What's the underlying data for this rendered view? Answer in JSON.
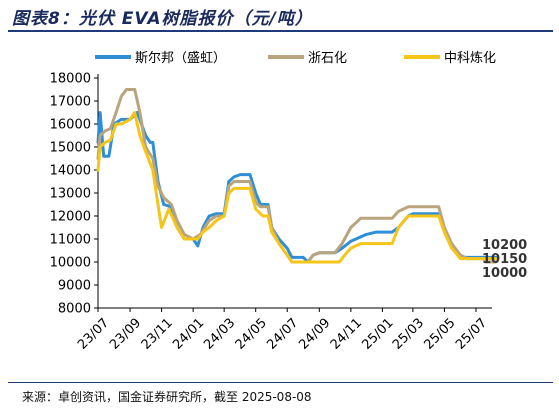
{
  "title": "图表8：光伏 EVA树脂报价（元/吨）",
  "source": "来源：卓创资讯，国金证券研究所，截至 2025-08-08",
  "chart_data": {
    "type": "line",
    "title": "图表8：光伏 EVA树脂报价（元/吨）",
    "ylabel": "",
    "xlabel": "",
    "ylim": [
      8000,
      18000
    ],
    "yticks": [
      8000,
      9000,
      10000,
      11000,
      12000,
      13000,
      14000,
      15000,
      16000,
      17000,
      18000
    ],
    "xlim": [
      "2023-07",
      "2025-08"
    ],
    "xtick_labels": [
      "23/07",
      "23/09",
      "23/11",
      "24/01",
      "24/03",
      "24/05",
      "24/07",
      "24/09",
      "24/11",
      "25/01",
      "25/03",
      "25/05",
      "25/07"
    ],
    "legend_position": "top",
    "grid": false,
    "end_labels": [
      "10200",
      "10150",
      "10000"
    ],
    "series": [
      {
        "name": "斯尔邦（盛虹）",
        "color": "#2e8fd6",
        "points": [
          [
            "2023-07-01",
            15200
          ],
          [
            "2023-07-05",
            16500
          ],
          [
            "2023-07-12",
            14600
          ],
          [
            "2023-07-22",
            14600
          ],
          [
            "2023-08-01",
            16000
          ],
          [
            "2023-08-15",
            16200
          ],
          [
            "2023-09-01",
            16200
          ],
          [
            "2023-09-15",
            16500
          ],
          [
            "2023-10-01",
            15500
          ],
          [
            "2023-10-10",
            15200
          ],
          [
            "2023-10-15",
            15200
          ],
          [
            "2023-10-25",
            13500
          ],
          [
            "2023-11-05",
            12500
          ],
          [
            "2023-11-20",
            12400
          ],
          [
            "2023-12-01",
            11500
          ],
          [
            "2023-12-15",
            11000
          ],
          [
            "2024-01-01",
            11000
          ],
          [
            "2024-01-10",
            10700
          ],
          [
            "2024-01-20",
            11500
          ],
          [
            "2024-02-01",
            12000
          ],
          [
            "2024-02-15",
            12100
          ],
          [
            "2024-03-01",
            12100
          ],
          [
            "2024-03-10",
            13500
          ],
          [
            "2024-03-20",
            13700
          ],
          [
            "2024-04-01",
            13800
          ],
          [
            "2024-04-20",
            13800
          ],
          [
            "2024-05-01",
            13000
          ],
          [
            "2024-05-10",
            12500
          ],
          [
            "2024-05-25",
            12500
          ],
          [
            "2024-06-01",
            11500
          ],
          [
            "2024-06-15",
            11000
          ],
          [
            "2024-07-01",
            10600
          ],
          [
            "2024-07-10",
            10200
          ],
          [
            "2024-08-01",
            10200
          ],
          [
            "2024-08-10",
            10000
          ],
          [
            "2024-08-20",
            10300
          ],
          [
            "2024-09-01",
            10400
          ],
          [
            "2024-10-01",
            10400
          ],
          [
            "2024-10-15",
            10600
          ],
          [
            "2024-11-01",
            10900
          ],
          [
            "2024-12-01",
            11200
          ],
          [
            "2024-12-20",
            11300
          ],
          [
            "2025-01-20",
            11300
          ],
          [
            "2025-02-01",
            11500
          ],
          [
            "2025-02-20",
            12000
          ],
          [
            "2025-03-01",
            12100
          ],
          [
            "2025-04-01",
            12100
          ],
          [
            "2025-04-20",
            12100
          ],
          [
            "2025-05-01",
            11300
          ],
          [
            "2025-05-15",
            10800
          ],
          [
            "2025-06-01",
            10200
          ],
          [
            "2025-06-15",
            10200
          ],
          [
            "2025-07-15",
            10200
          ],
          [
            "2025-08-08",
            10200
          ]
        ]
      },
      {
        "name": "浙石化",
        "color": "#b9a47e",
        "points": [
          [
            "2023-07-01",
            14500
          ],
          [
            "2023-07-05",
            15500
          ],
          [
            "2023-07-15",
            15700
          ],
          [
            "2023-07-25",
            15800
          ],
          [
            "2023-08-05",
            16500
          ],
          [
            "2023-08-15",
            17200
          ],
          [
            "2023-08-25",
            17500
          ],
          [
            "2023-09-10",
            17500
          ],
          [
            "2023-09-20",
            16500
          ],
          [
            "2023-10-01",
            15000
          ],
          [
            "2023-10-15",
            14500
          ],
          [
            "2023-10-25",
            13300
          ],
          [
            "2023-11-05",
            12800
          ],
          [
            "2023-11-20",
            12500
          ],
          [
            "2023-12-01",
            11800
          ],
          [
            "2023-12-15",
            11200
          ],
          [
            "2024-01-01",
            11000
          ],
          [
            "2024-01-15",
            11200
          ],
          [
            "2024-02-01",
            11800
          ],
          [
            "2024-02-15",
            12000
          ],
          [
            "2024-03-01",
            12000
          ],
          [
            "2024-03-10",
            13300
          ],
          [
            "2024-03-20",
            13500
          ],
          [
            "2024-04-20",
            13500
          ],
          [
            "2024-05-01",
            12600
          ],
          [
            "2024-05-10",
            12400
          ],
          [
            "2024-05-25",
            12400
          ],
          [
            "2024-06-01",
            11500
          ],
          [
            "2024-06-15",
            10800
          ],
          [
            "2024-07-01",
            10300
          ],
          [
            "2024-07-10",
            10000
          ],
          [
            "2024-08-10",
            10000
          ],
          [
            "2024-08-20",
            10300
          ],
          [
            "2024-09-01",
            10400
          ],
          [
            "2024-10-01",
            10400
          ],
          [
            "2024-10-15",
            10800
          ],
          [
            "2024-11-01",
            11500
          ],
          [
            "2024-11-20",
            11900
          ],
          [
            "2024-12-20",
            11900
          ],
          [
            "2025-01-20",
            11900
          ],
          [
            "2025-02-01",
            12200
          ],
          [
            "2025-02-20",
            12400
          ],
          [
            "2025-04-01",
            12400
          ],
          [
            "2025-04-20",
            12400
          ],
          [
            "2025-05-01",
            11500
          ],
          [
            "2025-05-15",
            10800
          ],
          [
            "2025-06-01",
            10300
          ],
          [
            "2025-06-15",
            10150
          ],
          [
            "2025-07-15",
            10150
          ],
          [
            "2025-07-20",
            10000
          ],
          [
            "2025-08-08",
            10000
          ]
        ]
      },
      {
        "name": "中科炼化",
        "color": "#f5c518",
        "points": [
          [
            "2023-07-01",
            14000
          ],
          [
            "2023-07-05",
            15000
          ],
          [
            "2023-07-15",
            15200
          ],
          [
            "2023-07-25",
            15300
          ],
          [
            "2023-08-05",
            16000
          ],
          [
            "2023-08-15",
            16000
          ],
          [
            "2023-09-01",
            16200
          ],
          [
            "2023-09-10",
            16500
          ],
          [
            "2023-09-20",
            15500
          ],
          [
            "2023-10-01",
            14800
          ],
          [
            "2023-10-15",
            14000
          ],
          [
            "2023-10-25",
            12500
          ],
          [
            "2023-11-01",
            11500
          ],
          [
            "2023-11-15",
            12300
          ],
          [
            "2023-12-01",
            11500
          ],
          [
            "2023-12-15",
            11000
          ],
          [
            "2024-01-10",
            11000
          ],
          [
            "2024-01-20",
            11300
          ],
          [
            "2024-02-01",
            11500
          ],
          [
            "2024-02-15",
            11800
          ],
          [
            "2024-03-01",
            12000
          ],
          [
            "2024-03-10",
            13000
          ],
          [
            "2024-03-20",
            13200
          ],
          [
            "2024-04-20",
            13200
          ],
          [
            "2024-05-01",
            12300
          ],
          [
            "2024-05-15",
            12000
          ],
          [
            "2024-05-25",
            12000
          ],
          [
            "2024-06-01",
            11300
          ],
          [
            "2024-06-15",
            10800
          ],
          [
            "2024-07-01",
            10300
          ],
          [
            "2024-07-10",
            10000
          ],
          [
            "2024-08-01",
            10000
          ],
          [
            "2024-09-01",
            10000
          ],
          [
            "2024-10-01",
            10000
          ],
          [
            "2024-10-10",
            10000
          ],
          [
            "2024-10-20",
            10300
          ],
          [
            "2024-11-01",
            10600
          ],
          [
            "2024-11-20",
            10800
          ],
          [
            "2024-12-20",
            10800
          ],
          [
            "2025-01-20",
            10800
          ],
          [
            "2025-02-01",
            11500
          ],
          [
            "2025-02-20",
            12000
          ],
          [
            "2025-04-20",
            12000
          ],
          [
            "2025-05-01",
            11300
          ],
          [
            "2025-05-15",
            10600
          ],
          [
            "2025-06-01",
            10150
          ],
          [
            "2025-06-15",
            10150
          ],
          [
            "2025-07-15",
            10150
          ],
          [
            "2025-08-08",
            10150
          ]
        ]
      }
    ]
  }
}
